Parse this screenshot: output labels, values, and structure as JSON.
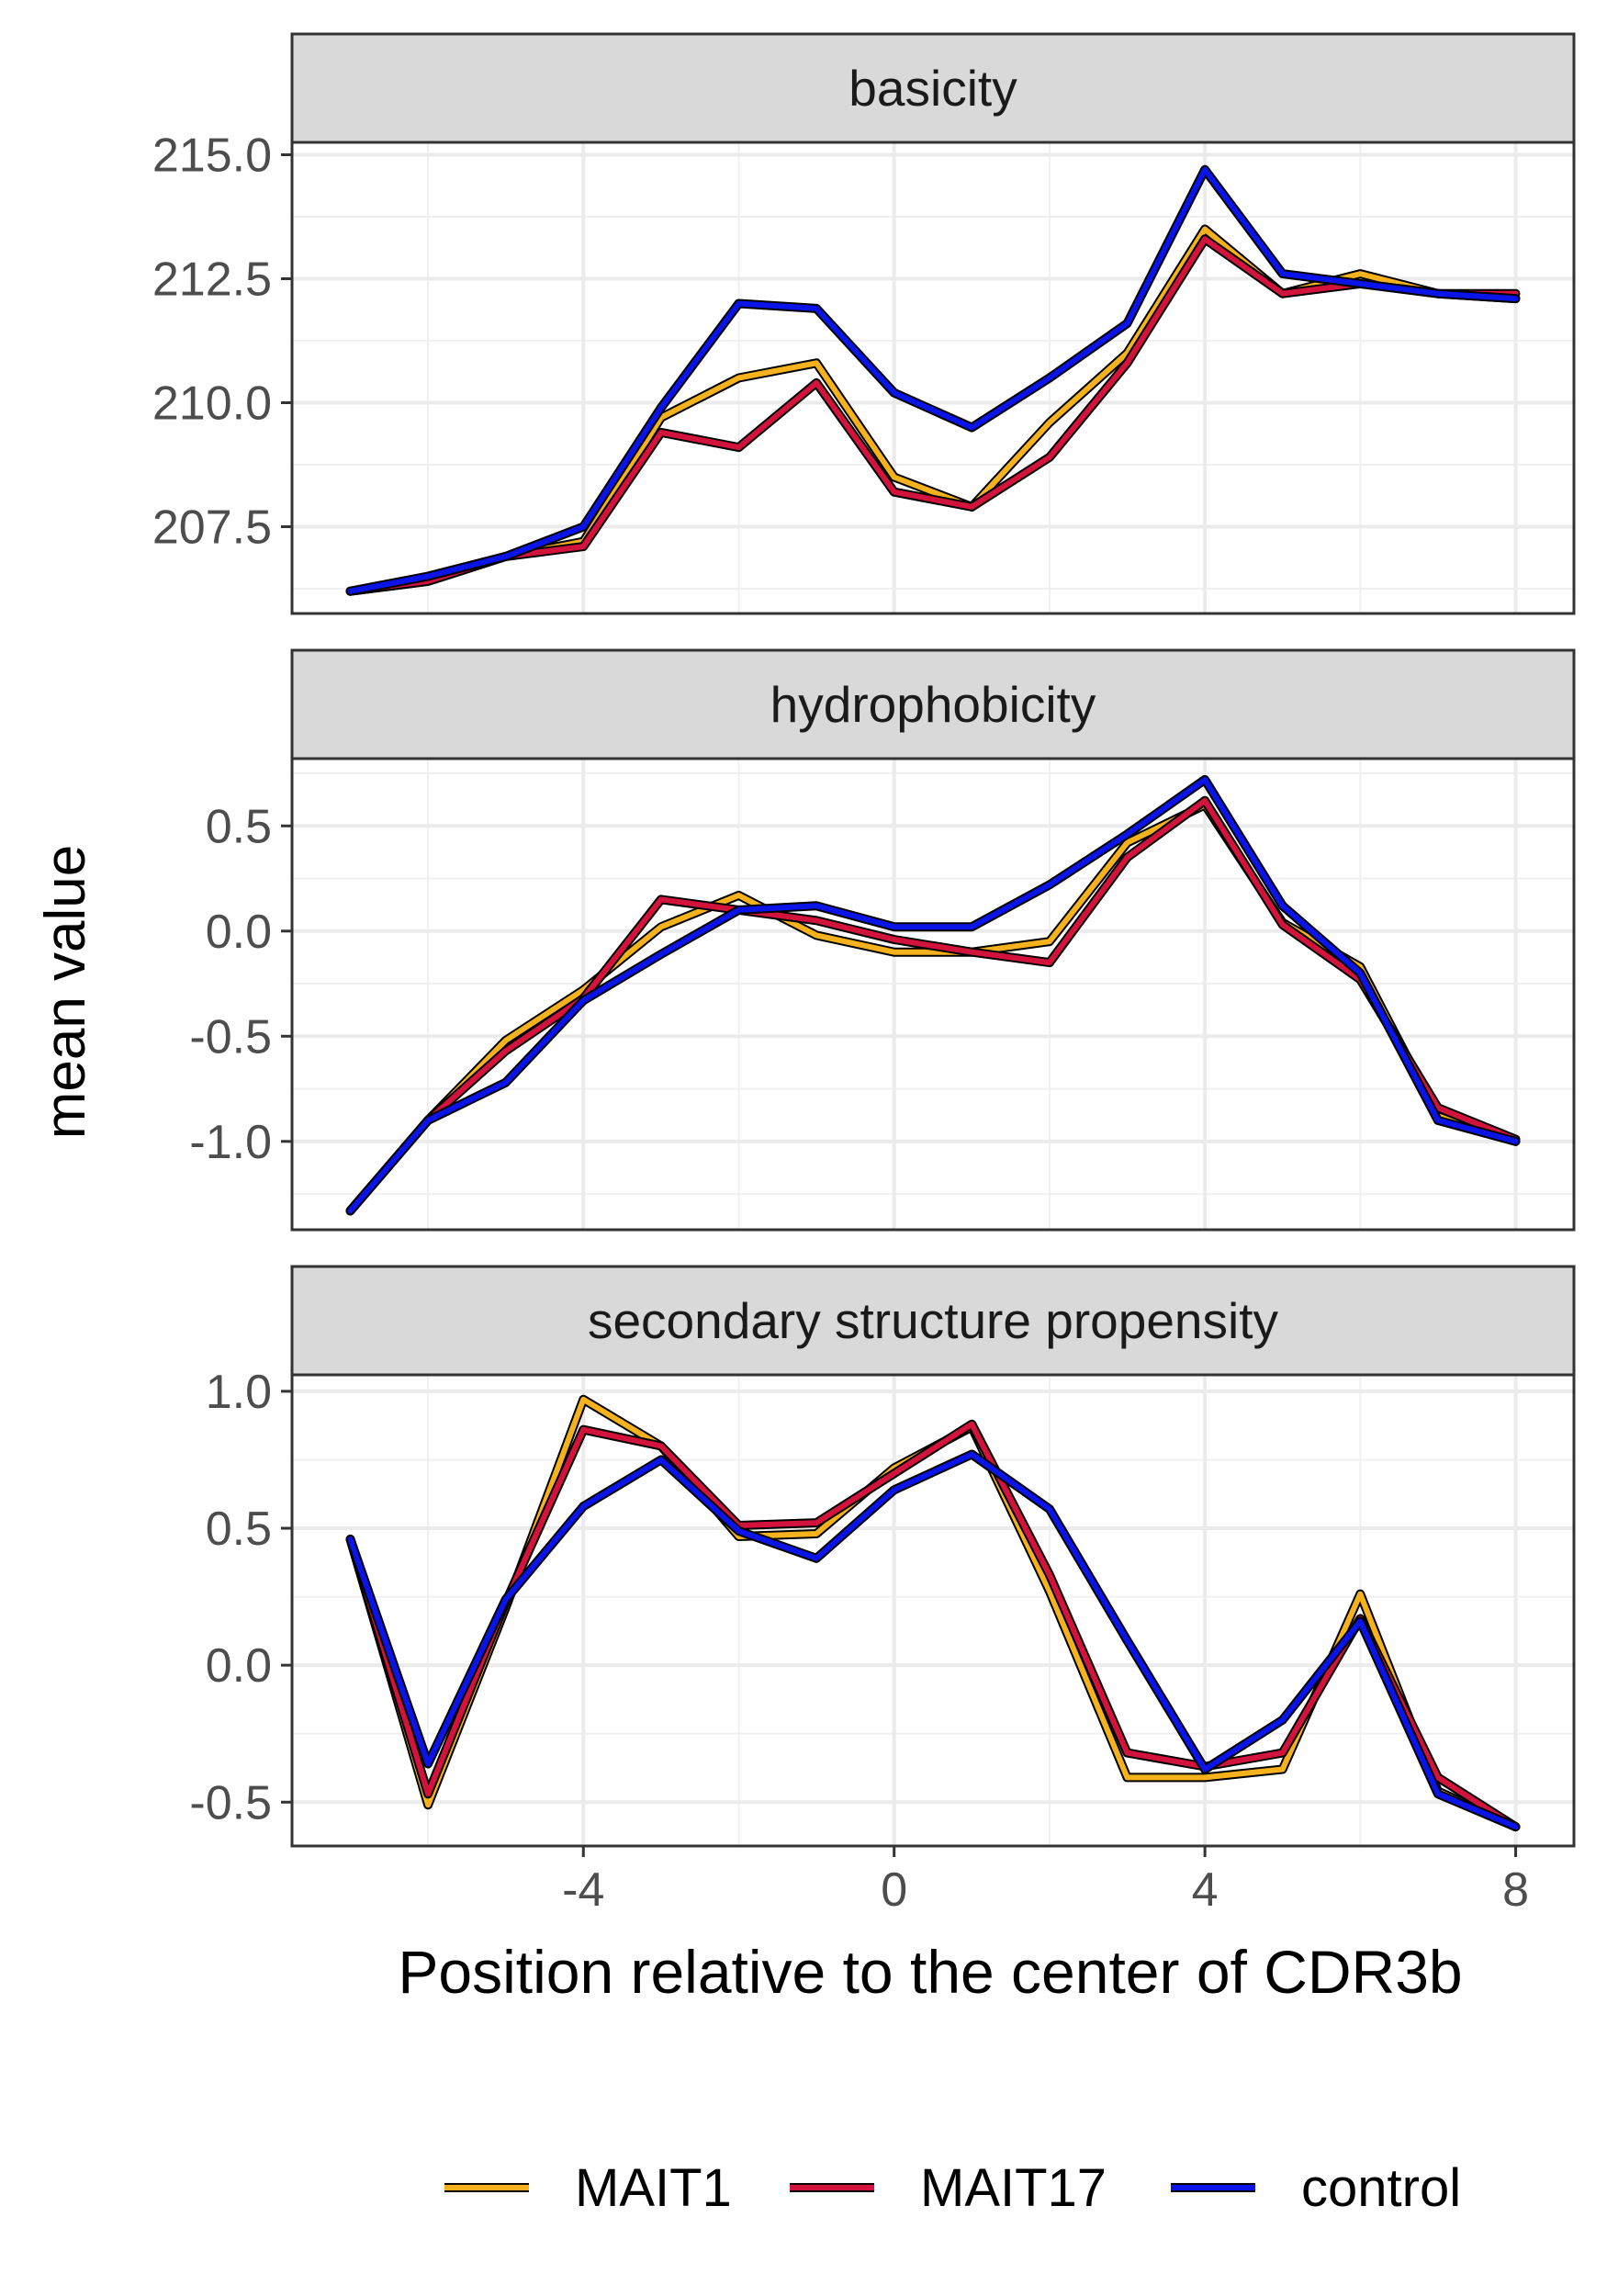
{
  "chart_data": {
    "type": "line",
    "facet_layout": "vertical, 3 panels, shared x-axis",
    "xlabel": "Position relative to the center of CDR3b",
    "ylabel": "mean value",
    "x": [
      -7,
      -6,
      -5,
      -4,
      -3,
      -2,
      -1,
      0,
      1,
      2,
      3,
      4,
      5,
      6,
      7,
      8
    ],
    "x_ticks": [
      "-4",
      "0",
      "4",
      "8"
    ],
    "x_tick_values": [
      -4,
      0,
      4,
      8
    ],
    "xlim": [
      -7.75,
      8.75
    ],
    "grid": true,
    "legend": {
      "position": "bottom",
      "items": [
        {
          "label": "MAIT1",
          "color": "#F5B21D"
        },
        {
          "label": "MAIT17",
          "color": "#D2143C"
        },
        {
          "label": "control",
          "color": "#0A14E6"
        }
      ]
    },
    "panels": [
      {
        "strip": "basicity",
        "ylim": [
          205.75,
          215.25
        ],
        "y_ticks": [
          "207.5",
          "210.0",
          "212.5",
          "215.0"
        ],
        "y_tick_values": [
          207.5,
          210.0,
          212.5,
          215.0
        ],
        "series": [
          {
            "name": "MAIT1",
            "values": [
              206.2,
              206.4,
              206.9,
              207.2,
              209.7,
              210.5,
              210.8,
              208.5,
              207.9,
              209.6,
              211.0,
              213.5,
              212.2,
              212.6,
              212.2,
              212.1
            ]
          },
          {
            "name": "MAIT17",
            "values": [
              206.2,
              206.4,
              206.9,
              207.1,
              209.4,
              209.1,
              210.4,
              208.2,
              207.9,
              208.9,
              210.8,
              213.3,
              212.2,
              212.4,
              212.2,
              212.2
            ]
          },
          {
            "name": "control",
            "values": [
              206.2,
              206.5,
              206.9,
              207.5,
              209.9,
              212.0,
              211.9,
              210.2,
              209.5,
              210.5,
              211.6,
              214.7,
              212.6,
              212.4,
              212.2,
              212.1
            ]
          }
        ]
      },
      {
        "strip": "hydrophobicity",
        "ylim": [
          -1.42,
          0.82
        ],
        "y_ticks": [
          "-1.0",
          "-0.5",
          "0.0",
          "0.5"
        ],
        "y_tick_values": [
          -1.0,
          -0.5,
          0.0,
          0.5
        ],
        "series": [
          {
            "name": "MAIT1",
            "values": [
              -1.33,
              -0.9,
              -0.52,
              -0.28,
              0.02,
              0.17,
              -0.02,
              -0.1,
              -0.1,
              -0.05,
              0.42,
              0.6,
              0.04,
              -0.17,
              -0.88,
              -1.0
            ]
          },
          {
            "name": "MAIT17",
            "values": [
              -1.33,
              -0.9,
              -0.57,
              -0.32,
              0.15,
              0.1,
              0.05,
              -0.04,
              -0.1,
              -0.15,
              0.35,
              0.62,
              0.03,
              -0.23,
              -0.84,
              -0.99
            ]
          },
          {
            "name": "control",
            "values": [
              -1.33,
              -0.9,
              -0.72,
              -0.33,
              -0.11,
              0.1,
              0.12,
              0.02,
              0.02,
              0.22,
              0.46,
              0.72,
              0.12,
              -0.2,
              -0.9,
              -1.0
            ]
          }
        ]
      },
      {
        "strip": "secondary structure propensity",
        "ylim": [
          -0.66,
          1.06
        ],
        "y_ticks": [
          "-0.5",
          "0.0",
          "0.5",
          "1.0"
        ],
        "y_tick_values": [
          -0.5,
          0.0,
          0.5,
          1.0
        ],
        "series": [
          {
            "name": "MAIT1",
            "values": [
              0.46,
              -0.51,
              0.21,
              0.97,
              0.8,
              0.47,
              0.48,
              0.72,
              0.87,
              0.27,
              -0.41,
              -0.41,
              -0.38,
              0.26,
              -0.46,
              -0.59
            ]
          },
          {
            "name": "MAIT17",
            "values": [
              0.46,
              -0.47,
              0.23,
              0.86,
              0.8,
              0.51,
              0.52,
              0.7,
              0.88,
              0.33,
              -0.32,
              -0.37,
              -0.32,
              0.17,
              -0.41,
              -0.59
            ]
          },
          {
            "name": "control",
            "values": [
              0.46,
              -0.36,
              0.24,
              0.58,
              0.75,
              0.49,
              0.39,
              0.64,
              0.77,
              0.57,
              0.09,
              -0.38,
              -0.2,
              0.16,
              -0.47,
              -0.59
            ]
          }
        ]
      }
    ]
  }
}
